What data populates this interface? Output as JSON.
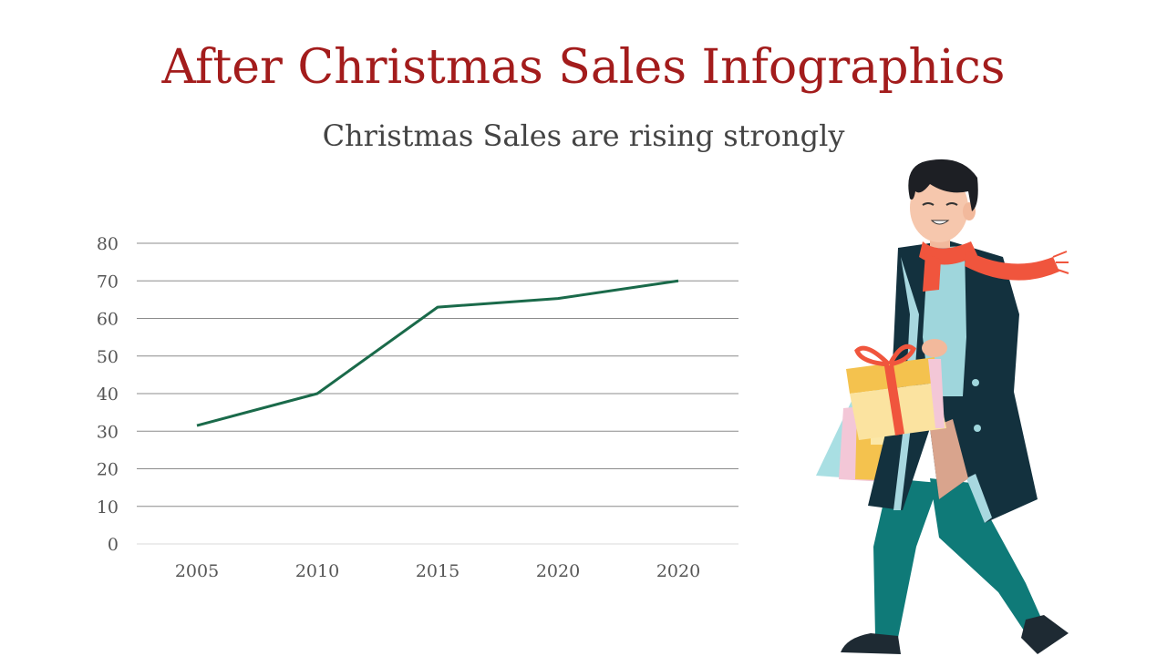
{
  "title": "After Christmas Sales Infographics",
  "subtitle": "Christmas Sales are rising strongly",
  "chart_data": {
    "type": "line",
    "categories": [
      "2005",
      "2010",
      "2015",
      "2020",
      "2020"
    ],
    "series": [
      {
        "values": [
          31.5,
          40,
          63,
          65.3,
          70
        ],
        "color": "#1a6a4a"
      }
    ],
    "ylim": [
      0,
      80
    ],
    "yticks": [
      0,
      10,
      20,
      30,
      40,
      50,
      60,
      70,
      80
    ],
    "grid": true,
    "legend": "none"
  },
  "illustration": {
    "subject": "man in long coat carrying gift box and shopping bags",
    "colors": {
      "coat": "#13313e",
      "pants": "#0e7a7a",
      "scarf": "#f0553d",
      "gift": "#f6c44f"
    }
  }
}
